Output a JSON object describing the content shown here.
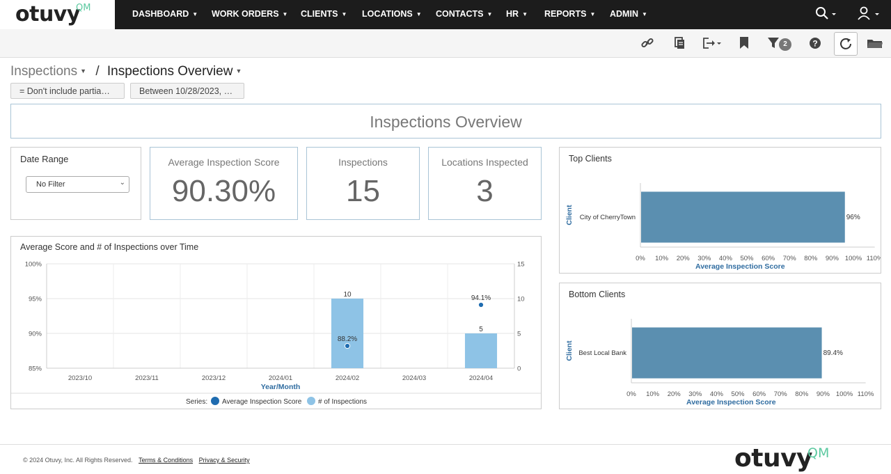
{
  "brand": {
    "logo": "otuvy",
    "logo_suffix": "QM",
    "accent": "#5cc9a0"
  },
  "nav": {
    "items": [
      "DASHBOARD",
      "WORK ORDERS",
      "CLIENTS",
      "LOCATIONS",
      "CONTACTS",
      "HR",
      "REPORTS",
      "ADMIN"
    ],
    "search_icon": "search-icon",
    "user_icon": "user-icon"
  },
  "toolbar": {
    "icons": [
      "link-icon",
      "copy-icon",
      "export-icon",
      "bookmark-icon",
      "filter-icon",
      "help-icon",
      "refresh-icon",
      "folder-icon"
    ],
    "filter_count": "2"
  },
  "breadcrumb": {
    "parent": "Inspections",
    "separator": "/",
    "current": "Inspections Overview"
  },
  "filters": [
    "= Don't include partia…",
    "Between 10/28/2023, …"
  ],
  "banner": {
    "title": "Inspections Overview"
  },
  "date_range": {
    "title": "Date Range",
    "selected": "No Filter"
  },
  "kpis": [
    {
      "title": "Average Inspection Score",
      "value": "90.30%"
    },
    {
      "title": "Inspections",
      "value": "15"
    },
    {
      "title": "Locations Inspected",
      "value": "3"
    }
  ],
  "chart_data": [
    {
      "type": "bar",
      "title": "Average Score and # of Inspections over Time",
      "xlabel": "Year/Month",
      "categories": [
        "2023/10",
        "2023/11",
        "2023/12",
        "2024/01",
        "2024/02",
        "2024/03",
        "2024/04"
      ],
      "y_left_ticks": [
        "85%",
        "90%",
        "95%",
        "100%"
      ],
      "y_left_range": [
        85,
        100
      ],
      "y_right_ticks": [
        "0",
        "5",
        "10",
        "15"
      ],
      "y_right_range": [
        0,
        15
      ],
      "legend_prefix": "Series:",
      "series": [
        {
          "name": "Average Inspection Score",
          "kind": "scatter",
          "axis": "left",
          "color": "#1f6cb0",
          "values": [
            null,
            null,
            null,
            null,
            88.2,
            null,
            94.1
          ],
          "labels": [
            "",
            "",
            "",
            "",
            "88.2%",
            "",
            "94.1%"
          ]
        },
        {
          "name": "# of Inspections",
          "kind": "bar",
          "axis": "right",
          "color": "#8ec3e6",
          "values": [
            null,
            null,
            null,
            null,
            10,
            null,
            5
          ],
          "labels": [
            "",
            "",
            "",
            "",
            "10",
            "",
            "5"
          ]
        }
      ],
      "legend": "bottom"
    },
    {
      "type": "bar",
      "orientation": "horizontal",
      "title": "Top Clients",
      "categories": [
        "City of CherryTown"
      ],
      "values": [
        96
      ],
      "value_labels": [
        "96%"
      ],
      "xlabel": "Average Inspection Score",
      "ylabel": "Client",
      "x_ticks": [
        "0%",
        "10%",
        "20%",
        "30%",
        "40%",
        "50%",
        "60%",
        "70%",
        "80%",
        "90%",
        "100%",
        "110%"
      ],
      "xlim": [
        0,
        110
      ],
      "color": "#5b8fb0"
    },
    {
      "type": "bar",
      "orientation": "horizontal",
      "title": "Bottom Clients",
      "categories": [
        "Best Local Bank"
      ],
      "values": [
        89.4
      ],
      "value_labels": [
        "89.4%"
      ],
      "xlabel": "Average Inspection Score",
      "ylabel": "Client",
      "x_ticks": [
        "0%",
        "10%",
        "20%",
        "30%",
        "40%",
        "50%",
        "60%",
        "70%",
        "80%",
        "90%",
        "100%",
        "110%"
      ],
      "xlim": [
        0,
        110
      ],
      "color": "#5b8fb0"
    }
  ],
  "footer": {
    "copyright": "© 2024 Otuvy, Inc. All Rights Reserved.",
    "terms": "Terms & Conditions",
    "privacy": "Privacy & Security",
    "logo": "otuvy",
    "logo_suffix": "QM"
  }
}
